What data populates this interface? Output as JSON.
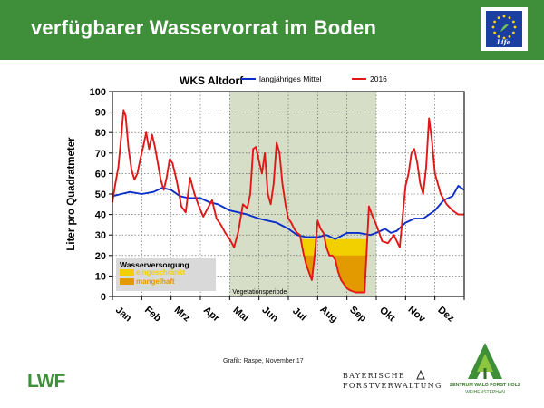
{
  "header": {
    "title": "verfügbarer Wasservorrat im Boden"
  },
  "logos": {
    "eu_life": "Life",
    "lwf": "LWF",
    "bayern_line1": "BAYERISCHE",
    "bayern_line2": "FORSTVERWALTUNG",
    "zwfh_line1": "ZENTRUM WALD FORST HOLZ",
    "zwfh_line2": "WEIHENSTEPHAN"
  },
  "footer": {
    "source": "Grafik: Raspe, November 17"
  },
  "chart_data": {
    "type": "line",
    "title": "WKS Altdorf",
    "xlabel": "",
    "ylabel": "Liter pro Quadratmeter",
    "ylim": [
      0,
      100
    ],
    "yticks": [
      0,
      10,
      20,
      30,
      40,
      50,
      60,
      70,
      80,
      90,
      100
    ],
    "xlim": [
      0,
      12
    ],
    "month_labels": [
      "Jan",
      "Feb",
      "Mrz",
      "Apr",
      "Mai",
      "Jun",
      "Jul",
      "Aug",
      "Sep",
      "Okt",
      "Nov",
      "Dez"
    ],
    "grid": true,
    "legend_position": "top",
    "vegetation_period": {
      "label": "Vegetationsperiode",
      "start": 4,
      "end": 9
    },
    "thresholds": {
      "restricted": 28,
      "deficient": 20
    },
    "supply_legend": {
      "title": "Wasserversorgung",
      "items": [
        {
          "label": "eingeschränkt",
          "color": "#f2d000"
        },
        {
          "label": "mangelhaft",
          "color": "#e39a00"
        }
      ]
    },
    "series": [
      {
        "name": "langjähriges Mittel",
        "color": "#0a2ec8",
        "x": [
          0,
          0.3,
          0.6,
          1.0,
          1.4,
          1.7,
          2.0,
          2.3,
          2.6,
          3.0,
          3.3,
          3.6,
          4.0,
          4.3,
          4.6,
          5.0,
          5.3,
          5.6,
          6.0,
          6.3,
          6.6,
          7.0,
          7.3,
          7.6,
          8.0,
          8.4,
          8.8,
          9.0,
          9.3,
          9.5,
          9.7,
          10.0,
          10.3,
          10.6,
          11.0,
          11.3,
          11.6,
          11.8,
          12.0
        ],
        "y": [
          49,
          50,
          51,
          50,
          51,
          53,
          52,
          49,
          48,
          48,
          46,
          45,
          42,
          41,
          40,
          38,
          37,
          36,
          33,
          30,
          29,
          29,
          30,
          28,
          31,
          31,
          30,
          31,
          33,
          31,
          32,
          36,
          38,
          38,
          42,
          47,
          49,
          54,
          52
        ]
      },
      {
        "name": "2016",
        "color": "#e01818",
        "x": [
          0,
          0.1,
          0.2,
          0.3,
          0.38,
          0.45,
          0.55,
          0.65,
          0.75,
          0.85,
          0.95,
          1.05,
          1.15,
          1.25,
          1.35,
          1.45,
          1.55,
          1.65,
          1.75,
          1.85,
          1.95,
          2.05,
          2.2,
          2.35,
          2.5,
          2.65,
          2.8,
          2.95,
          3.1,
          3.25,
          3.4,
          3.55,
          3.7,
          3.85,
          4.0,
          4.15,
          4.3,
          4.45,
          4.6,
          4.7,
          4.8,
          4.9,
          5.0,
          5.1,
          5.2,
          5.3,
          5.4,
          5.5,
          5.6,
          5.7,
          5.8,
          5.9,
          6.0,
          6.1,
          6.2,
          6.3,
          6.4,
          6.5,
          6.6,
          6.7,
          6.8,
          6.9,
          7.0,
          7.1,
          7.2,
          7.3,
          7.4,
          7.5,
          7.6,
          7.7,
          7.8,
          7.9,
          8.0,
          8.1,
          8.2,
          8.3,
          8.4,
          8.5,
          8.6,
          8.7,
          8.75,
          8.85,
          9.0,
          9.2,
          9.4,
          9.6,
          9.8,
          10.0,
          10.1,
          10.2,
          10.3,
          10.4,
          10.5,
          10.6,
          10.7,
          10.8,
          10.9,
          11.0,
          11.2,
          11.4,
          11.6,
          11.8,
          12.0
        ],
        "y": [
          46,
          55,
          63,
          78,
          91,
          88,
          72,
          62,
          57,
          60,
          67,
          73,
          80,
          72,
          79,
          73,
          65,
          57,
          52,
          58,
          67,
          65,
          56,
          44,
          41,
          58,
          50,
          44,
          39,
          43,
          47,
          38,
          35,
          31,
          28,
          24,
          32,
          45,
          43,
          50,
          72,
          73,
          66,
          60,
          70,
          50,
          45,
          55,
          75,
          70,
          55,
          45,
          38,
          36,
          33,
          31,
          30,
          22,
          16,
          12,
          8,
          20,
          37,
          33,
          31,
          24,
          20,
          20,
          18,
          12,
          8,
          6,
          4,
          3,
          2.5,
          2,
          2,
          2,
          2,
          30,
          44,
          40,
          35,
          27,
          26,
          30,
          24,
          54,
          60,
          70,
          72,
          65,
          55,
          50,
          63,
          87,
          76,
          60,
          50,
          45,
          42,
          40,
          40
        ]
      }
    ]
  }
}
